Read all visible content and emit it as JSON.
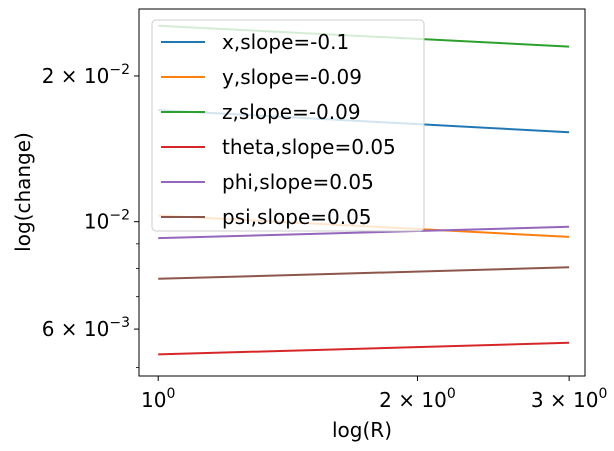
{
  "chart_data": {
    "type": "line",
    "xscale": "log",
    "yscale": "log",
    "xlabel": "log(R)",
    "ylabel": "log(change)",
    "xlim": [
      0.95,
      3.13
    ],
    "ylim": [
      0.0048,
      0.0275
    ],
    "x_ticks": [
      {
        "value": 1,
        "base": "10",
        "exp": "0"
      },
      {
        "value": 2,
        "base": "2 × 10",
        "exp": "0"
      },
      {
        "value": 3,
        "base": "3 × 10",
        "exp": "0"
      }
    ],
    "y_ticks": [
      {
        "value": 0.006,
        "base": "6 × 10",
        "exp": "−3"
      },
      {
        "value": 0.01,
        "base": "10",
        "exp": "−2"
      },
      {
        "value": 0.02,
        "base": "2 × 10",
        "exp": "−2"
      }
    ],
    "y_minor_ticks": [
      0.005,
      0.007,
      0.008,
      0.009
    ],
    "x": [
      1,
      3
    ],
    "series": [
      {
        "name": "x,slope=-0.1",
        "color": "#1f77b4",
        "values": [
          0.017,
          0.0153
        ]
      },
      {
        "name": "y,slope=-0.09",
        "color": "#ff7f0e",
        "values": [
          0.0103,
          0.0093
        ]
      },
      {
        "name": "z,slope=-0.09",
        "color": "#2ca02c",
        "values": [
          0.0254,
          0.023
        ]
      },
      {
        "name": "theta,slope=0.05",
        "color": "#d62728",
        "values": [
          0.00532,
          0.00562
        ]
      },
      {
        "name": "phi,slope=0.05",
        "color": "#9467bd",
        "values": [
          0.00925,
          0.00976
        ]
      },
      {
        "name": "psi,slope=0.05",
        "color": "#8c564b",
        "values": [
          0.00762,
          0.00805
        ]
      }
    ],
    "legend": "top-left",
    "grid": false
  }
}
